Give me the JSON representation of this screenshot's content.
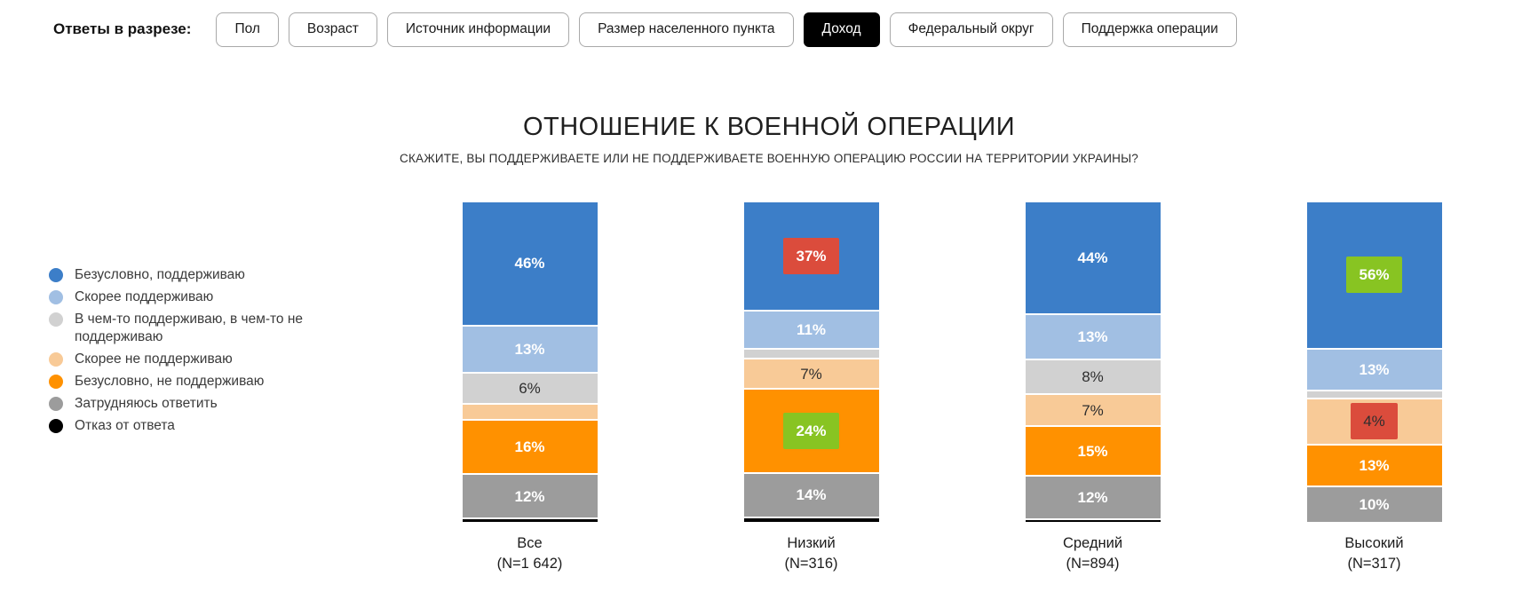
{
  "filter_bar": {
    "label": "Ответы в разрезе:",
    "buttons": [
      {
        "label": "Пол",
        "active": false
      },
      {
        "label": "Возраст",
        "active": false
      },
      {
        "label": "Источник информации",
        "active": false
      },
      {
        "label": "Размер населенного пункта",
        "active": false
      },
      {
        "label": "Доход",
        "active": true
      },
      {
        "label": "Федеральный округ",
        "active": false
      },
      {
        "label": "Поддержка операции",
        "active": false
      }
    ]
  },
  "chart": {
    "title": "ОТНОШЕНИЕ К ВОЕННОЙ ОПЕРАЦИИ",
    "subtitle": "СКАЖИТЕ, ВЫ ПОДДЕРЖИВАЕТЕ ИЛИ НЕ ПОДДЕРЖИВАЕТЕ ВОЕННУЮ ОПЕРАЦИЮ РОССИИ НА ТЕРРИТОРИИ УКРАИНЫ?"
  },
  "colors": {
    "active_button_bg": "#000000",
    "highlight_higher": "#88C422",
    "highlight_lower": "#DB4C3C"
  },
  "legend": [
    {
      "label": "Безусловно, поддерживаю",
      "color": "#3C7EC8"
    },
    {
      "label": "Скорее поддерживаю",
      "color": "#A1BFE3"
    },
    {
      "label": "В чем-то поддерживаю, в чем-то не поддерживаю",
      "color": "#D1D1D1"
    },
    {
      "label": "Скорее не поддерживаю",
      "color": "#F8CA97"
    },
    {
      "label": "Безусловно, не поддерживаю",
      "color": "#FF9100"
    },
    {
      "label": "Затрудняюсь ответить",
      "color": "#9C9C9C"
    },
    {
      "label": "Отказ от ответа",
      "color": "#000000"
    }
  ],
  "chart_data": {
    "type": "bar",
    "stacked": true,
    "unit": "%",
    "title": "ОТНОШЕНИЕ К ВОЕННОЙ ОПЕРАЦИИ",
    "subtitle": "СКАЖИТЕ, ВЫ ПОДДЕРЖИВАЕТЕ ИЛИ НЕ ПОДДЕРЖИВАЕТЕ ВОЕННУЮ ОПЕРАЦИЮ РОССИИ НА ТЕРРИТОРИИ УКРАИНЫ?",
    "categories": [
      "Все (N=1 642)",
      "Низкий (N=316)",
      "Средний (N=894)",
      "Высокий (N=317)"
    ],
    "legend_position": "left",
    "series": [
      {
        "name": "Безусловно, поддерживаю",
        "color": "#3C7EC8",
        "values": [
          46,
          37,
          44,
          56
        ]
      },
      {
        "name": "Скорее поддерживаю",
        "color": "#A1BFE3",
        "values": [
          13,
          11,
          13,
          13
        ]
      },
      {
        "name": "В чем-то поддерживаю, в чем-то не поддерживаю",
        "color": "#D1D1D1",
        "values": [
          6,
          4,
          8,
          3
        ]
      },
      {
        "name": "Скорее не поддерживаю",
        "color": "#F8CA97",
        "values": [
          6,
          7,
          7,
          4
        ]
      },
      {
        "name": "Безусловно, не поддерживаю",
        "color": "#FF9100",
        "values": [
          16,
          24,
          15,
          13
        ]
      },
      {
        "name": "Затрудняюсь ответить",
        "color": "#9C9C9C",
        "values": [
          12,
          14,
          12,
          10
        ]
      },
      {
        "name": "Отказ от ответа",
        "color": "#000000",
        "values": [
          1,
          2,
          1,
          0
        ]
      }
    ],
    "annotations": {
      "significantly_higher_bg": "#88C422",
      "significantly_lower_bg": "#DB4C3C",
      "marked_values": [
        {
          "category": "Низкий (N=316)",
          "series": "Безусловно, поддерживаю",
          "value": 37,
          "mark": "lower"
        },
        {
          "category": "Низкий (N=316)",
          "series": "Безусловно, не поддерживаю",
          "value": 24,
          "mark": "higher"
        },
        {
          "category": "Высокий (N=317)",
          "series": "Безусловно, поддерживаю",
          "value": 56,
          "mark": "higher"
        },
        {
          "category": "Высокий (N=317)",
          "series": "Скорее не поддерживаю",
          "value": 4,
          "mark": "lower"
        }
      ]
    }
  },
  "bars": [
    {
      "category": "Все",
      "n_label": "(N=1 642)",
      "segments": [
        {
          "series": "strong-support",
          "value": 46,
          "label": "46%",
          "tone": "light",
          "highlight": null
        },
        {
          "series": "rather-support",
          "value": 13,
          "label": "13%",
          "tone": "light",
          "highlight": null
        },
        {
          "series": "partly-support",
          "value": 6,
          "label": "6%",
          "tone": "dark",
          "highlight": null
        },
        {
          "series": "rather-not-support",
          "value": 6,
          "label": "",
          "tone": "dark",
          "highlight": null
        },
        {
          "series": "strong-not-support",
          "value": 16,
          "label": "16%",
          "tone": "light",
          "highlight": null
        },
        {
          "series": "difficult-to-answer",
          "value": 12,
          "label": "12%",
          "tone": "light",
          "highlight": null
        },
        {
          "series": "refuse-to-answer",
          "value": 1,
          "label": "",
          "tone": "light",
          "highlight": null
        }
      ]
    },
    {
      "category": "Низкий",
      "n_label": "(N=316)",
      "segments": [
        {
          "series": "strong-support",
          "value": 37,
          "label": "37%",
          "tone": "light",
          "highlight": "lower"
        },
        {
          "series": "rather-support",
          "value": 11,
          "label": "11%",
          "tone": "light",
          "highlight": null
        },
        {
          "series": "partly-support",
          "value": 4,
          "label": "",
          "tone": "dark",
          "highlight": null
        },
        {
          "series": "rather-not-support",
          "value": 7,
          "label": "7%",
          "tone": "dark",
          "highlight": null
        },
        {
          "series": "strong-not-support",
          "value": 24,
          "label": "24%",
          "tone": "light",
          "highlight": "higher"
        },
        {
          "series": "difficult-to-answer",
          "value": 14,
          "label": "14%",
          "tone": "light",
          "highlight": null
        },
        {
          "series": "refuse-to-answer",
          "value": 2,
          "label": "",
          "tone": "light",
          "highlight": null
        }
      ]
    },
    {
      "category": "Средний",
      "n_label": "(N=894)",
      "segments": [
        {
          "series": "strong-support",
          "value": 44,
          "label": "44%",
          "tone": "light",
          "highlight": null
        },
        {
          "series": "rather-support",
          "value": 13,
          "label": "13%",
          "tone": "light",
          "highlight": null
        },
        {
          "series": "partly-support",
          "value": 8,
          "label": "8%",
          "tone": "dark",
          "highlight": null
        },
        {
          "series": "rather-not-support",
          "value": 7,
          "label": "7%",
          "tone": "dark",
          "highlight": null
        },
        {
          "series": "strong-not-support",
          "value": 15,
          "label": "15%",
          "tone": "light",
          "highlight": null
        },
        {
          "series": "difficult-to-answer",
          "value": 12,
          "label": "12%",
          "tone": "light",
          "highlight": null
        },
        {
          "series": "refuse-to-answer",
          "value": 1,
          "label": "",
          "tone": "light",
          "highlight": null
        }
      ]
    },
    {
      "category": "Высокий",
      "n_label": "(N=317)",
      "segments": [
        {
          "series": "strong-support",
          "value": 56,
          "label": "56%",
          "tone": "light",
          "highlight": "higher"
        },
        {
          "series": "rather-support",
          "value": 13,
          "label": "13%",
          "tone": "light",
          "highlight": null
        },
        {
          "series": "partly-support",
          "value": 3,
          "label": "",
          "tone": "dark",
          "highlight": null
        },
        {
          "series": "rather-not-support",
          "value": 4,
          "label": "4%",
          "tone": "dark",
          "highlight": "lower"
        },
        {
          "series": "strong-not-support",
          "value": 13,
          "label": "13%",
          "tone": "light",
          "highlight": null
        },
        {
          "series": "difficult-to-answer",
          "value": 10,
          "label": "10%",
          "tone": "light",
          "highlight": null
        },
        {
          "series": "refuse-to-answer",
          "value": 0,
          "label": "",
          "tone": "light",
          "highlight": null
        }
      ]
    }
  ]
}
